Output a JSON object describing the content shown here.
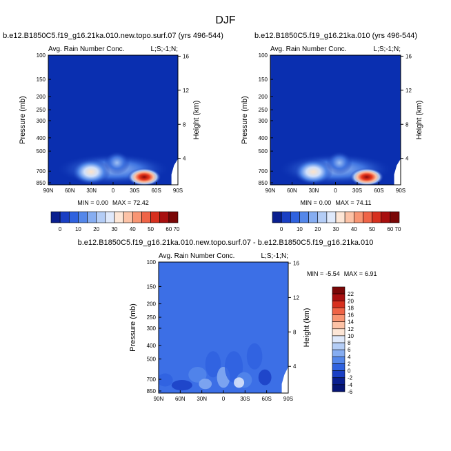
{
  "figure": {
    "title": "DJF"
  },
  "palette": {
    "background": "#0a2fb0",
    "diff_background": "#3c6fe6",
    "frame": "#000000"
  },
  "chart_data": [
    {
      "type": "heatmap",
      "panel": "top-left",
      "title": "b.e12.B1850C5.f19_g16.21ka.010.new.topo.surf.07 (yrs 496-544)",
      "left_label": "Avg. Rain Number Conc.",
      "right_label": "L;S;-1;N;",
      "xlabel": "",
      "ylabel": "Pressure (mb)",
      "y2label": "Height (km)",
      "x_ticks": [
        "90N",
        "60N",
        "30N",
        "0",
        "30S",
        "60S",
        "90S"
      ],
      "y_ticks": [
        100,
        150,
        200,
        250,
        300,
        400,
        500,
        700,
        850
      ],
      "y2_ticks": [
        16,
        12,
        8,
        4
      ],
      "min_label": "MIN =",
      "min_value": "0.00",
      "max_label": "MAX =",
      "max_value": "72.42",
      "colorbar_labels": [
        "0",
        "10",
        "20",
        "30",
        "40",
        "50",
        "60",
        "70"
      ]
    },
    {
      "type": "heatmap",
      "panel": "top-right",
      "title": "b.e12.B1850C5.f19_g16.21ka.010 (yrs 496-544)",
      "left_label": "Avg. Rain Number Conc.",
      "right_label": "L;S;-1;N;",
      "xlabel": "",
      "ylabel": "Pressure (mb)",
      "y2label": "Height (km)",
      "x_ticks": [
        "90N",
        "60N",
        "30N",
        "0",
        "30S",
        "60S",
        "90S"
      ],
      "y_ticks": [
        100,
        150,
        200,
        250,
        300,
        400,
        500,
        700,
        850
      ],
      "y2_ticks": [
        16,
        12,
        8,
        4
      ],
      "min_label": "MIN =",
      "min_value": "0.00",
      "max_label": "MAX =",
      "max_value": "74.11",
      "colorbar_labels": [
        "0",
        "10",
        "20",
        "30",
        "40",
        "50",
        "60",
        "70"
      ]
    },
    {
      "type": "heatmap",
      "panel": "bottom-difference",
      "title": "b.e12.B1850C5.f19_g16.21ka.010.new.topo.surf.07 - b.e12.B1850C5.f19_g16.21ka.010",
      "left_label": "Avg. Rain Number Conc.",
      "right_label": "L;S;-1;N;",
      "xlabel": "",
      "ylabel": "Pressure (mb)",
      "y2label": "Height (km)",
      "x_ticks": [
        "90N",
        "60N",
        "30N",
        "0",
        "30S",
        "60S",
        "90S"
      ],
      "y_ticks": [
        100,
        150,
        200,
        250,
        300,
        400,
        500,
        700,
        850
      ],
      "y2_ticks": [
        16,
        12,
        8,
        4
      ],
      "min_label": "MIN =",
      "min_value": "-5.54",
      "max_label": "MAX =",
      "max_value": "6.91",
      "colorbar_labels": [
        "22",
        "20",
        "18",
        "16",
        "14",
        "12",
        "10",
        "8",
        "6",
        "4",
        "2",
        "0",
        "-2",
        "-4",
        "-6"
      ]
    }
  ]
}
